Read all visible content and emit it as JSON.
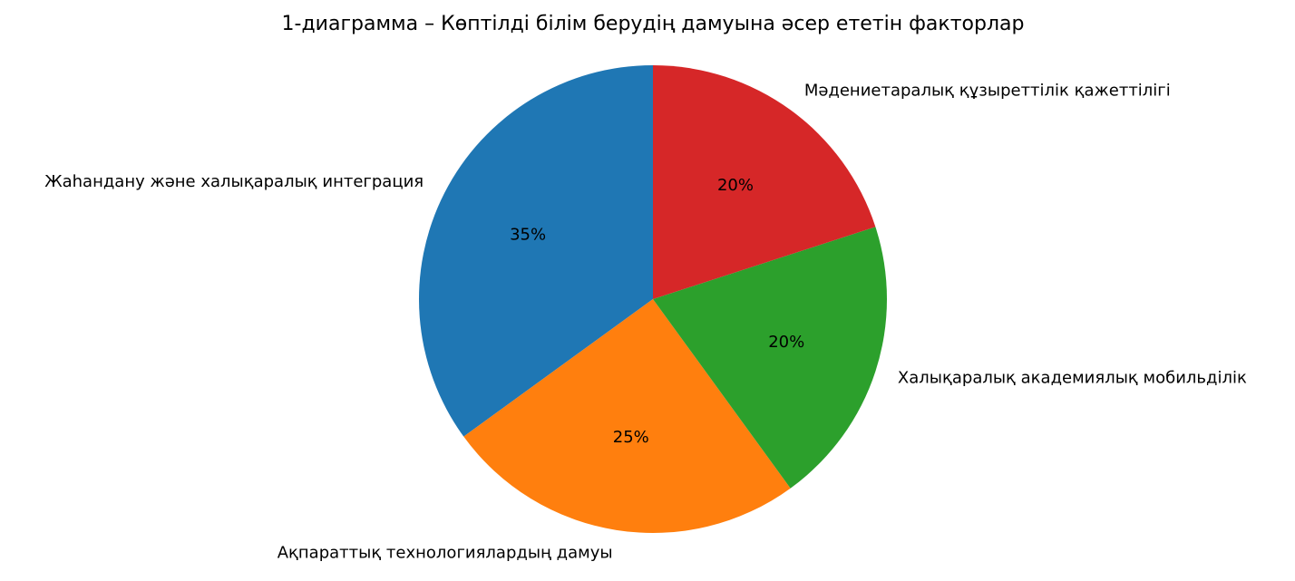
{
  "chart_data": {
    "type": "pie",
    "title": "1-диаграмма – Көптілді білім берудің дамуына әсер ететін факторлар",
    "categories": [
      "Жаһандану және халықаралық интеграция",
      "Ақпараттық технологиялардың дамуы",
      "Халықаралық академиялық мобильділік",
      "Мәдениетаралық құзыреттілік қажеттілігі"
    ],
    "values": [
      35,
      25,
      20,
      20
    ],
    "value_labels": [
      "35%",
      "25%",
      "20%",
      "20%"
    ],
    "colors": [
      "#1f77b4",
      "#ff7f0e",
      "#2ca02c",
      "#d62728"
    ],
    "start_angle": 90
  }
}
